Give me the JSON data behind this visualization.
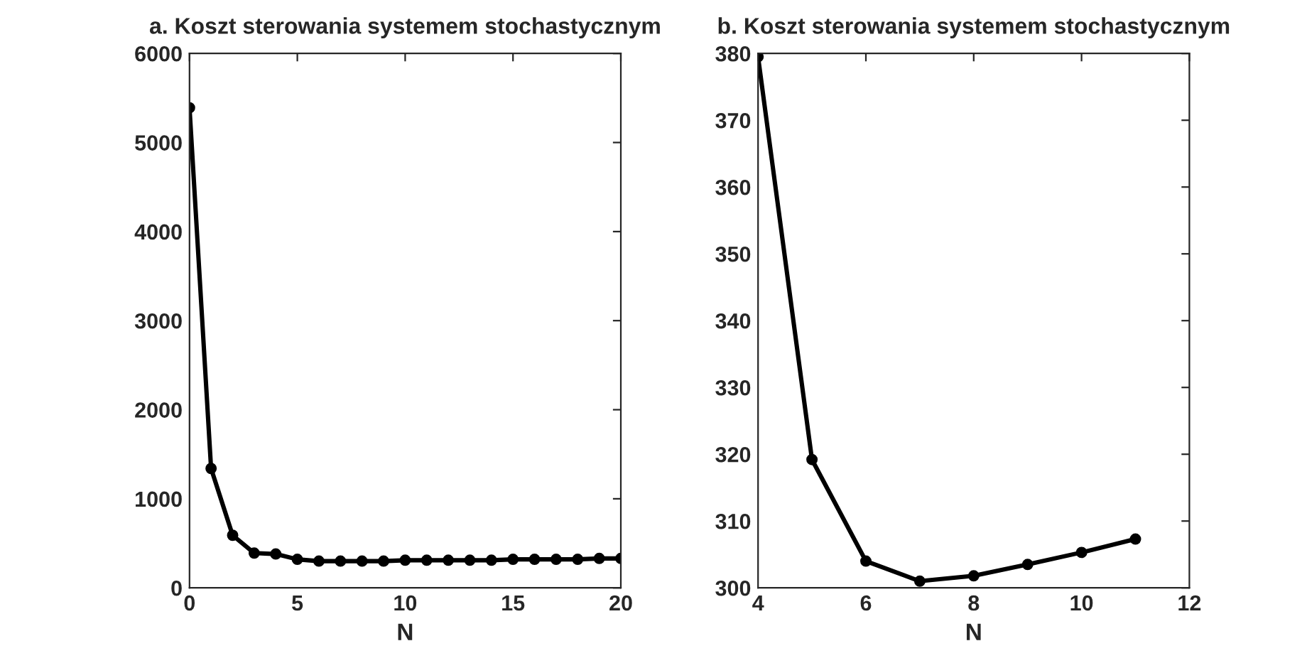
{
  "chart_data": [
    {
      "type": "line",
      "title": "a. Koszt sterowania systemem stochastycznym",
      "xlabel": "N",
      "marker": "circle",
      "line_style": "solid",
      "series": [
        {
          "color": "#000000",
          "x": [
            0,
            1,
            2,
            3,
            4,
            5,
            6,
            7,
            8,
            9,
            10,
            11,
            12,
            13,
            14,
            15,
            16,
            17,
            18,
            19,
            20
          ],
          "values": [
            5390,
            1340,
            590,
            390,
            380,
            320,
            300,
            300,
            300,
            300,
            310,
            310,
            310,
            310,
            310,
            320,
            320,
            320,
            320,
            330,
            330
          ]
        }
      ],
      "xlim": [
        0,
        20
      ],
      "xticks": [
        0,
        5,
        10,
        15,
        20
      ],
      "ylim": [
        0,
        6000
      ],
      "yticks": [
        0,
        1000,
        2000,
        3000,
        4000,
        5000,
        6000
      ]
    },
    {
      "type": "line",
      "title": "b. Koszt sterowania systemem stochastycznym",
      "xlabel": "N",
      "marker": "circle",
      "line_style": "solid",
      "series": [
        {
          "color": "#000000",
          "x": [
            4,
            5,
            6,
            7,
            8,
            9,
            10,
            11
          ],
          "values": [
            379.5,
            319.2,
            304,
            301,
            301.8,
            303.5,
            305.3,
            307.3
          ]
        }
      ],
      "xlim": [
        4,
        12
      ],
      "xticks": [
        4,
        6,
        8,
        10,
        12
      ],
      "ylim": [
        300,
        380
      ],
      "yticks": [
        300,
        310,
        320,
        330,
        340,
        350,
        360,
        370,
        380
      ]
    }
  ]
}
